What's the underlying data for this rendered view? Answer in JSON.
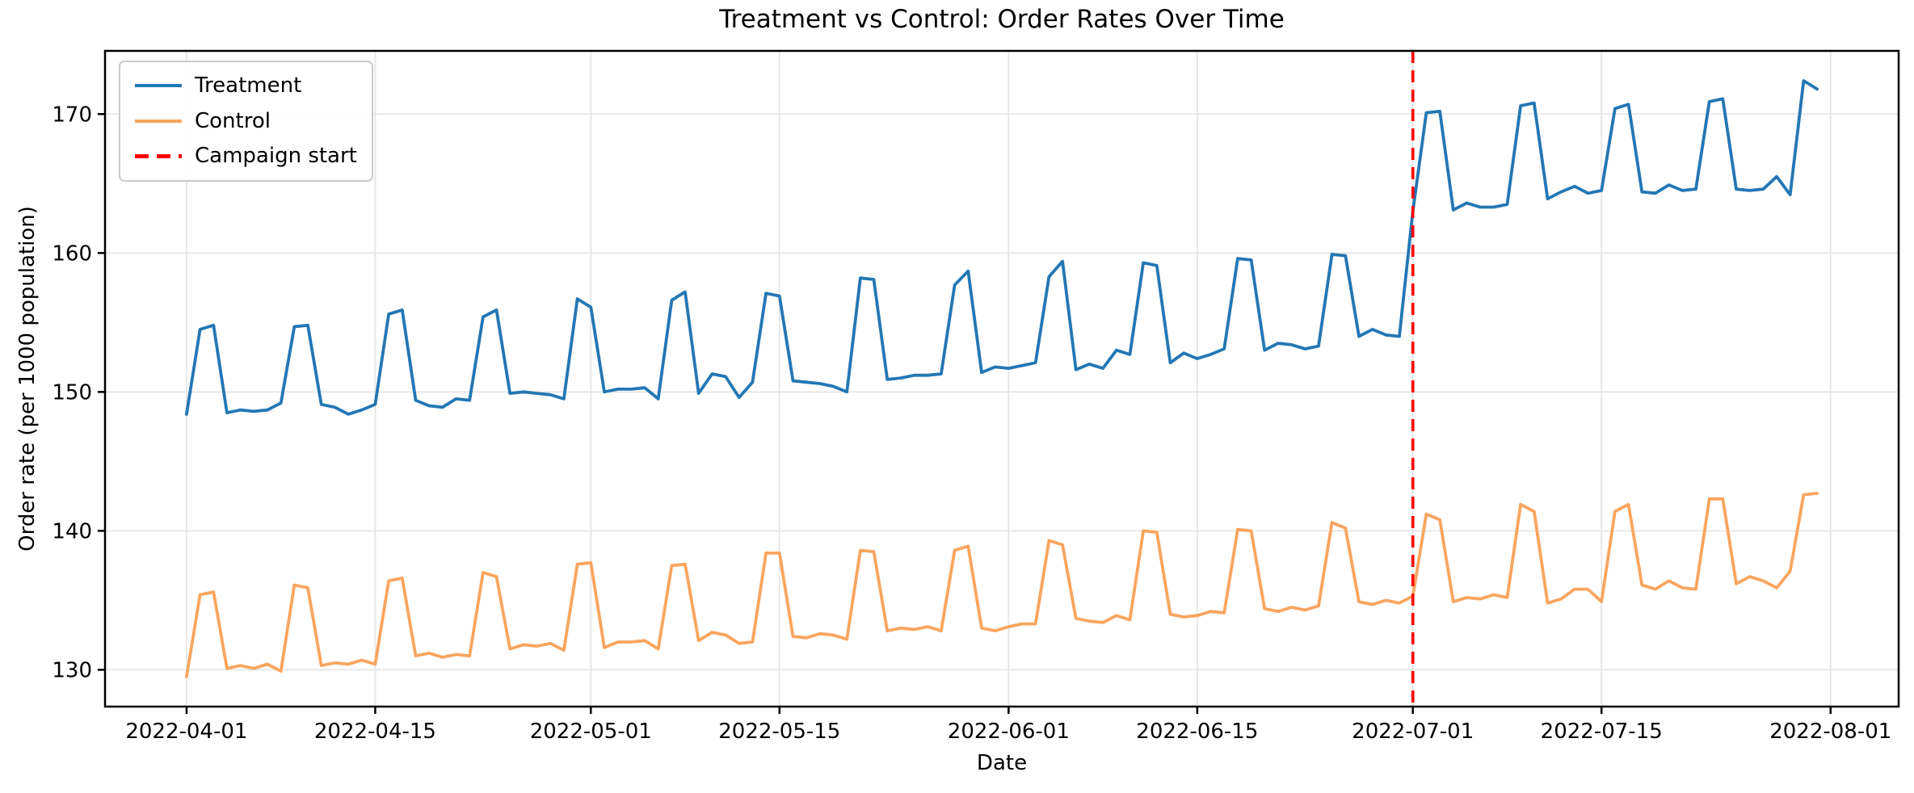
{
  "chart_data": {
    "type": "line",
    "title": "Treatment vs Control: Order Rates Over Time",
    "xlabel": "Date",
    "ylabel": "Order rate (per 1000 population)",
    "x": {
      "start_date": "2022-04-01",
      "end_date": "2022-07-31",
      "freq": "daily",
      "n_points": 122
    },
    "series": [
      {
        "name": "Treatment",
        "color": "#2377b4",
        "values": [
          148.4,
          154.5,
          154.8,
          148.5,
          148.7,
          148.6,
          148.7,
          149.2,
          154.7,
          154.8,
          149.1,
          148.9,
          148.4,
          148.7,
          149.1,
          155.6,
          155.9,
          149.4,
          149.0,
          148.9,
          149.5,
          149.4,
          155.4,
          155.9,
          149.9,
          150.0,
          149.9,
          149.8,
          149.5,
          156.7,
          156.1,
          150.0,
          150.2,
          150.2,
          150.3,
          149.5,
          156.6,
          157.2,
          149.9,
          151.3,
          151.1,
          149.6,
          150.7,
          157.1,
          156.9,
          150.8,
          150.7,
          150.6,
          150.4,
          150.0,
          158.2,
          158.1,
          150.9,
          151.0,
          151.2,
          151.2,
          151.3,
          157.7,
          158.7,
          151.4,
          151.8,
          151.7,
          151.9,
          152.1,
          158.3,
          159.4,
          151.6,
          152.0,
          151.7,
          153.0,
          152.7,
          159.3,
          159.1,
          152.1,
          152.8,
          152.4,
          152.7,
          153.1,
          159.6,
          159.5,
          153.0,
          153.5,
          153.4,
          153.1,
          153.3,
          159.9,
          159.8,
          154.0,
          154.5,
          154.1,
          154.0,
          163.0,
          170.1,
          170.2,
          163.1,
          163.6,
          163.3,
          163.3,
          163.5,
          170.6,
          170.8,
          163.9,
          164.4,
          164.8,
          164.3,
          164.5,
          170.4,
          170.7,
          164.4,
          164.3,
          164.9,
          164.5,
          164.6,
          170.9,
          171.1,
          164.6,
          164.5,
          164.6,
          165.5,
          164.2,
          172.4,
          171.8
        ]
      },
      {
        "name": "Control",
        "color": "#faa55f",
        "values": [
          129.5,
          135.4,
          135.6,
          130.1,
          130.3,
          130.1,
          130.4,
          129.9,
          136.1,
          135.9,
          130.3,
          130.5,
          130.4,
          130.7,
          130.4,
          136.4,
          136.6,
          131.0,
          131.2,
          130.9,
          131.1,
          131.0,
          137.0,
          136.7,
          131.5,
          131.8,
          131.7,
          131.9,
          131.4,
          137.6,
          137.7,
          131.6,
          132.0,
          132.0,
          132.1,
          131.5,
          137.5,
          137.6,
          132.1,
          132.7,
          132.5,
          131.9,
          132.0,
          138.4,
          138.4,
          132.4,
          132.3,
          132.6,
          132.5,
          132.2,
          138.6,
          138.5,
          132.8,
          133.0,
          132.9,
          133.1,
          132.8,
          138.6,
          138.9,
          133.0,
          132.8,
          133.1,
          133.3,
          133.3,
          139.3,
          139.0,
          133.7,
          133.5,
          133.4,
          133.9,
          133.6,
          140.0,
          139.9,
          134.0,
          133.8,
          133.9,
          134.2,
          134.1,
          140.1,
          140.0,
          134.4,
          134.2,
          134.5,
          134.3,
          134.6,
          140.6,
          140.2,
          134.9,
          134.7,
          135.0,
          134.8,
          135.3,
          141.2,
          140.8,
          134.9,
          135.2,
          135.1,
          135.4,
          135.2,
          141.9,
          141.4,
          134.8,
          135.1,
          135.8,
          135.8,
          134.9,
          141.4,
          141.9,
          136.1,
          135.8,
          136.4,
          135.9,
          135.8,
          142.3,
          142.3,
          136.2,
          136.7,
          136.4,
          135.9,
          137.1,
          142.6,
          142.7
        ]
      }
    ],
    "annotations": [
      {
        "type": "vline",
        "label": "Campaign start",
        "date": "2022-07-01",
        "day_offset": 91,
        "color": "#ff0000",
        "style": "dashed"
      }
    ],
    "x_ticks": {
      "day_offsets": [
        0,
        14,
        30,
        44,
        61,
        75,
        91,
        105,
        122
      ],
      "labels": [
        "2022-04-01",
        "2022-04-15",
        "2022-05-01",
        "2022-05-15",
        "2022-06-01",
        "2022-06-15",
        "2022-07-01",
        "2022-07-15",
        "2022-08-01"
      ]
    },
    "y_ticks": {
      "values": [
        130,
        140,
        150,
        160,
        170
      ],
      "labels": [
        "130",
        "140",
        "150",
        "160",
        "170"
      ]
    },
    "xlim_days": [
      -6.05,
      127.05
    ],
    "ylim": [
      127.35,
      174.55
    ],
    "grid": true,
    "grid_color": "#e6e6e6",
    "legend_position": "upper-left"
  }
}
